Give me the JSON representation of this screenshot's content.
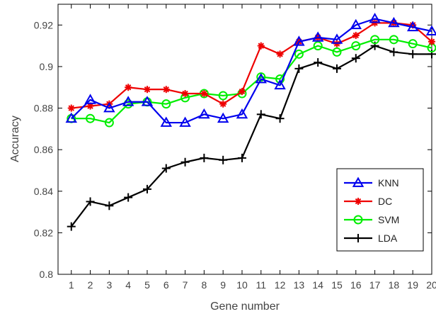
{
  "chart_data": {
    "type": "line",
    "title": "",
    "xlabel": "Gene number",
    "ylabel": "Accuracy",
    "xlim": [
      0.3,
      20.0
    ],
    "ylim": [
      0.8,
      0.93
    ],
    "xticks": [
      1,
      2,
      3,
      4,
      5,
      6,
      7,
      8,
      9,
      10,
      11,
      12,
      13,
      14,
      15,
      16,
      17,
      18,
      19,
      20
    ],
    "yticks": [
      0.8,
      0.82,
      0.84,
      0.86,
      0.88,
      0.9,
      0.92
    ],
    "ytick_labels": [
      "0.8",
      "0.82",
      "0.84",
      "0.86",
      "0.88",
      "0.9",
      "0.92"
    ],
    "grid": false,
    "legend_position": "lower-right",
    "x": [
      1,
      2,
      3,
      4,
      5,
      6,
      7,
      8,
      9,
      10,
      11,
      12,
      13,
      14,
      15,
      16,
      17,
      18,
      19,
      20
    ],
    "series": [
      {
        "name": "KNN",
        "color": "#0000ee",
        "marker": "triangle",
        "values": [
          0.875,
          0.884,
          0.88,
          0.883,
          0.883,
          0.873,
          0.873,
          0.877,
          0.875,
          0.877,
          0.894,
          0.891,
          0.912,
          0.914,
          0.913,
          0.92,
          0.923,
          0.921,
          0.919,
          0.917
        ]
      },
      {
        "name": "DC",
        "color": "#ee0000",
        "marker": "asterisk",
        "values": [
          0.88,
          0.881,
          0.882,
          0.89,
          0.889,
          0.889,
          0.887,
          0.887,
          0.882,
          0.888,
          0.91,
          0.906,
          0.912,
          0.914,
          0.911,
          0.915,
          0.921,
          0.921,
          0.92,
          0.912
        ]
      },
      {
        "name": "SVM",
        "color": "#00ee00",
        "marker": "circle",
        "values": [
          0.875,
          0.875,
          0.873,
          0.882,
          0.883,
          0.882,
          0.885,
          0.887,
          0.886,
          0.887,
          0.895,
          0.894,
          0.906,
          0.91,
          0.907,
          0.91,
          0.913,
          0.913,
          0.911,
          0.909
        ]
      },
      {
        "name": "LDA",
        "color": "#000000",
        "marker": "plus",
        "values": [
          0.823,
          0.835,
          0.833,
          0.837,
          0.841,
          0.851,
          0.854,
          0.856,
          0.855,
          0.856,
          0.877,
          0.875,
          0.899,
          0.902,
          0.899,
          0.904,
          0.91,
          0.907,
          0.906,
          0.906
        ]
      }
    ]
  }
}
